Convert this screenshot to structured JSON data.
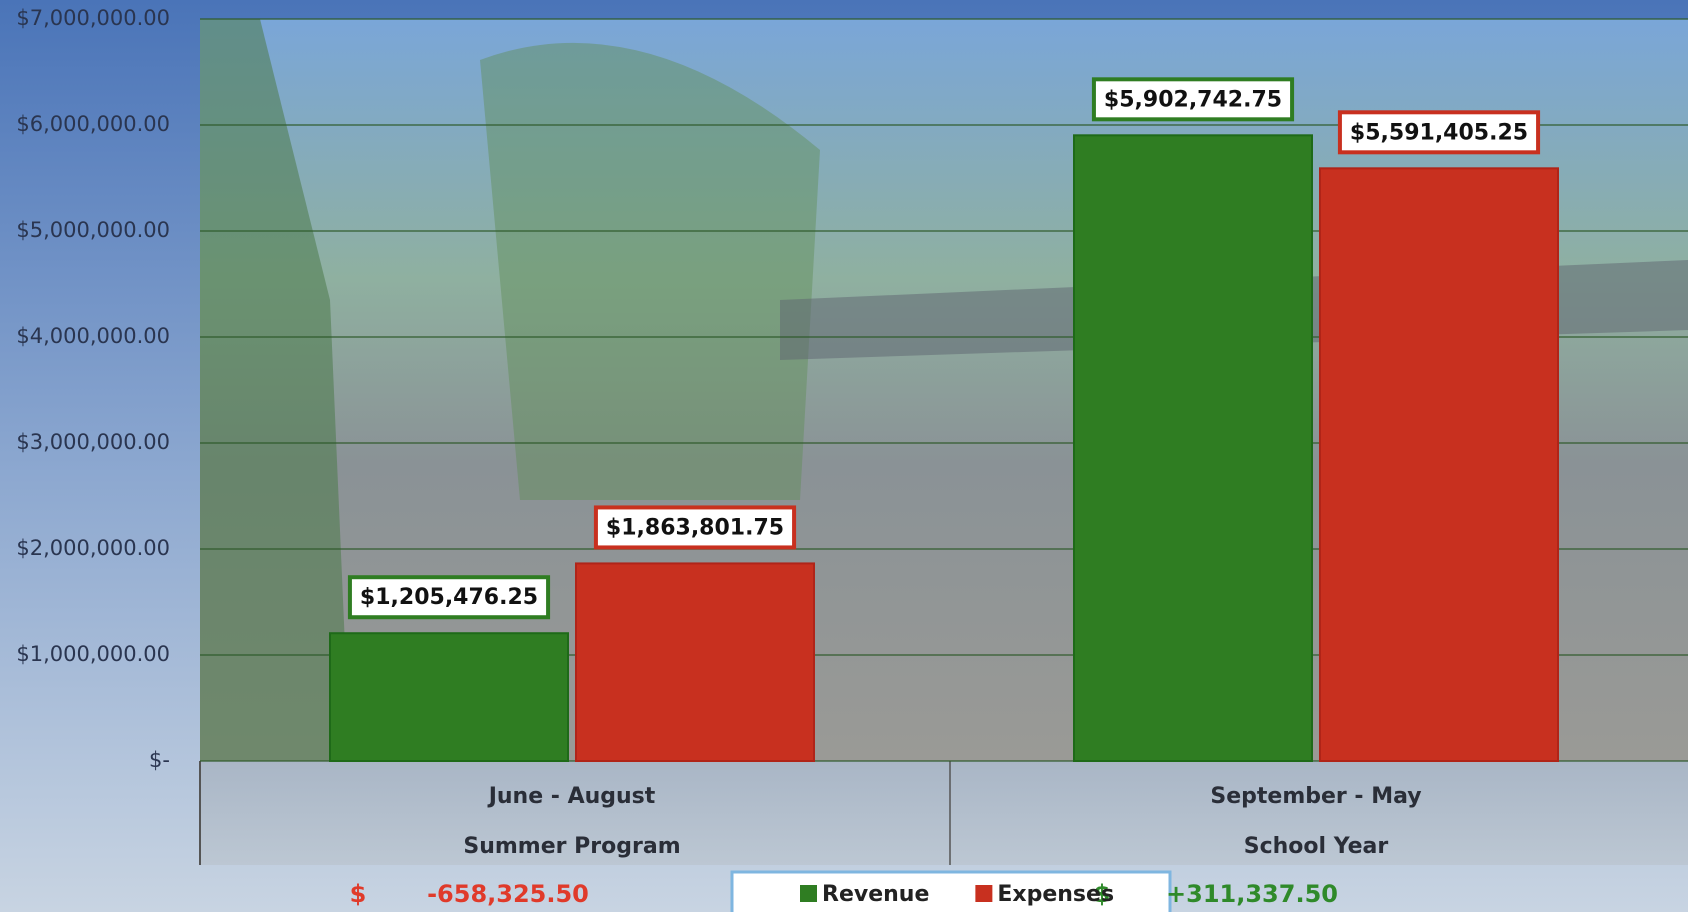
{
  "chart_data": {
    "type": "bar",
    "categories": [
      "June - August",
      "September - May"
    ],
    "category_groups": [
      "Summer Program",
      "School Year"
    ],
    "net_labels": [
      {
        "symbol": "$",
        "amount": "-658,325.50",
        "color": "#e03a2a"
      },
      {
        "symbol": "$",
        "amount": "+311,337.50",
        "color": "#2f8a2a"
      }
    ],
    "series": [
      {
        "name": "Revenue",
        "color": "#2f7d22",
        "border": "#1e6a18",
        "values": [
          1205476.25,
          5902742.75
        ],
        "value_labels": [
          "$1,205,476.25",
          "$5,902,742.75"
        ]
      },
      {
        "name": "Expenses",
        "color": "#c8301f",
        "border": "#b02418",
        "values": [
          1863801.75,
          5591405.25
        ],
        "value_labels": [
          "$1,863,801.75",
          "$5,591,405.25"
        ]
      }
    ],
    "ylim": [
      0,
      7000000
    ],
    "yticks": [
      {
        "value": 0,
        "label": "$-"
      },
      {
        "value": 1000000,
        "label": "$1,000,000.00"
      },
      {
        "value": 2000000,
        "label": "$2,000,000.00"
      },
      {
        "value": 3000000,
        "label": "$3,000,000.00"
      },
      {
        "value": 4000000,
        "label": "$4,000,000.00"
      },
      {
        "value": 5000000,
        "label": "$5,000,000.00"
      },
      {
        "value": 6000000,
        "label": "$6,000,000.00"
      },
      {
        "value": 7000000,
        "label": "$7,000,000.00"
      }
    ],
    "grid": true
  }
}
